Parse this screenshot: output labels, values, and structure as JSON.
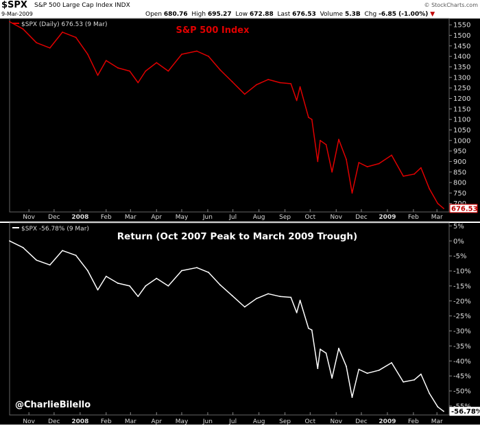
{
  "header": {
    "symbol": "$SPX",
    "name": "S&P 500 Large Cap Index",
    "exchange": "INDX",
    "source": "© StockCharts.com",
    "date": "9-Mar-2009",
    "open_label": "Open",
    "open": "680.76",
    "high_label": "High",
    "high": "695.27",
    "low_label": "Low",
    "low": "672.88",
    "last_label": "Last",
    "last": "676.53",
    "volume_label": "Volume",
    "volume": "5.3B",
    "chg_label": "Chg",
    "chg": "-6.85 (-1.00%)",
    "chg_arrow": "▼"
  },
  "watermark": "@CharlieBilello",
  "colors": {
    "price_line": "#e00000",
    "return_line": "#ffffff",
    "background": "#000000"
  },
  "chart_data": [
    {
      "type": "line",
      "legend": "$SPX (Daily) 676.53 (9 Mar)",
      "title": "S&P 500 Index",
      "last_value_label": "676.53",
      "ylim": [
        660,
        1580
      ],
      "y_ticks": [
        700,
        750,
        800,
        850,
        900,
        950,
        1000,
        1050,
        1100,
        1150,
        1200,
        1250,
        1300,
        1350,
        1400,
        1450,
        1500,
        1550
      ],
      "x_ticks": [
        "Nov",
        "Dec",
        "2008",
        "Feb",
        "Mar",
        "Apr",
        "May",
        "Jun",
        "Jul",
        "Aug",
        "Sep",
        "Oct",
        "Nov",
        "Dec",
        "2009",
        "Feb",
        "Mar"
      ],
      "grid": false,
      "x": [
        "2007-10-09",
        "2007-10-25",
        "2007-11-10",
        "2007-11-26",
        "2007-12-11",
        "2007-12-27",
        "2008-01-10",
        "2008-01-22",
        "2008-02-01",
        "2008-02-15",
        "2008-02-29",
        "2008-03-10",
        "2008-03-19",
        "2008-04-01",
        "2008-04-15",
        "2008-05-01",
        "2008-05-19",
        "2008-06-02",
        "2008-06-16",
        "2008-06-30",
        "2008-07-15",
        "2008-07-29",
        "2008-08-12",
        "2008-08-26",
        "2008-09-08",
        "2008-09-15",
        "2008-09-19",
        "2008-09-29",
        "2008-10-03",
        "2008-10-10",
        "2008-10-13",
        "2008-10-20",
        "2008-10-27",
        "2008-11-04",
        "2008-11-13",
        "2008-11-20",
        "2008-11-28",
        "2008-12-08",
        "2008-12-22",
        "2009-01-06",
        "2009-01-20",
        "2009-02-02",
        "2009-02-10",
        "2009-02-20",
        "2009-03-02",
        "2009-03-09"
      ],
      "values": [
        1565,
        1530,
        1465,
        1440,
        1515,
        1490,
        1410,
        1310,
        1380,
        1345,
        1330,
        1275,
        1330,
        1370,
        1330,
        1410,
        1425,
        1400,
        1335,
        1280,
        1220,
        1265,
        1290,
        1275,
        1270,
        1190,
        1255,
        1110,
        1100,
        900,
        1000,
        980,
        850,
        1005,
        910,
        750,
        895,
        875,
        890,
        930,
        830,
        840,
        870,
        770,
        700,
        676.53
      ]
    },
    {
      "type": "line",
      "legend": "$SPX -56.78% (9 Mar)",
      "title": "Return (Oct 2007 Peak to March 2009 Trough)",
      "last_value_label": "-56.78%",
      "ylim": [
        -58,
        6
      ],
      "y_ticks": [
        "5%",
        "0%",
        "-5%",
        "-10%",
        "-15%",
        "-20%",
        "-25%",
        "-30%",
        "-35%",
        "-40%",
        "-45%",
        "-50%",
        "-55%"
      ],
      "x_ticks": [
        "Nov",
        "Dec",
        "2008",
        "Feb",
        "Mar",
        "Apr",
        "May",
        "Jun",
        "Jul",
        "Aug",
        "Sep",
        "Oct",
        "Nov",
        "Dec",
        "2009",
        "Feb",
        "Mar"
      ],
      "grid": false,
      "x": [
        "2007-10-09",
        "2007-10-25",
        "2007-11-10",
        "2007-11-26",
        "2007-12-11",
        "2007-12-27",
        "2008-01-10",
        "2008-01-22",
        "2008-02-01",
        "2008-02-15",
        "2008-02-29",
        "2008-03-10",
        "2008-03-19",
        "2008-04-01",
        "2008-04-15",
        "2008-05-01",
        "2008-05-19",
        "2008-06-02",
        "2008-06-16",
        "2008-06-30",
        "2008-07-15",
        "2008-07-29",
        "2008-08-12",
        "2008-08-26",
        "2008-09-08",
        "2008-09-15",
        "2008-09-19",
        "2008-09-29",
        "2008-10-03",
        "2008-10-10",
        "2008-10-13",
        "2008-10-20",
        "2008-10-27",
        "2008-11-04",
        "2008-11-13",
        "2008-11-20",
        "2008-11-28",
        "2008-12-08",
        "2008-12-22",
        "2009-01-06",
        "2009-01-20",
        "2009-02-02",
        "2009-02-10",
        "2009-02-20",
        "2009-03-02",
        "2009-03-09"
      ],
      "values": [
        0,
        -2.2,
        -6.4,
        -8,
        -3.2,
        -4.8,
        -9.9,
        -16.3,
        -11.8,
        -14.1,
        -15,
        -18.5,
        -15,
        -12.5,
        -15,
        -9.9,
        -8.9,
        -10.5,
        -14.7,
        -18.2,
        -22,
        -19.2,
        -17.6,
        -18.5,
        -18.8,
        -23.9,
        -19.8,
        -29.1,
        -29.7,
        -42.5,
        -36.1,
        -37.4,
        -45.7,
        -35.8,
        -41.8,
        -52.1,
        -42.8,
        -44.1,
        -43.1,
        -40.6,
        -47,
        -46.3,
        -44.4,
        -50.8,
        -55.3,
        -56.78
      ]
    }
  ]
}
